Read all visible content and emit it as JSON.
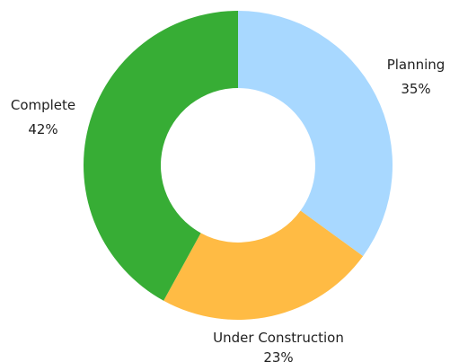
{
  "chart_data": {
    "type": "pie",
    "slices": [
      {
        "name": "Planning",
        "value": 35,
        "label": "35%",
        "color": "#A8D8FF"
      },
      {
        "name": "Under Construction",
        "value": 23,
        "label": "23%",
        "color": "#FFBB44"
      },
      {
        "name": "Complete",
        "value": 42,
        "label": "42%",
        "color": "#37AD35"
      }
    ],
    "donut": true,
    "legend": "none"
  }
}
